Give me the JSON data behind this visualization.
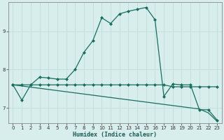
{
  "xlabel": "Humidex (Indice chaleur)",
  "xlim": [
    -0.5,
    23.5
  ],
  "ylim": [
    6.6,
    9.75
  ],
  "yticks": [
    7,
    8,
    9
  ],
  "xticks": [
    0,
    1,
    2,
    3,
    4,
    5,
    6,
    7,
    8,
    9,
    10,
    11,
    12,
    13,
    14,
    15,
    16,
    17,
    18,
    19,
    20,
    21,
    22,
    23
  ],
  "bg_color": "#d8eeec",
  "grid_color": "#c2dedd",
  "line_color": "#1a6e60",
  "lines": [
    {
      "x": [
        0,
        1,
        2,
        3,
        4,
        5,
        6,
        7,
        8,
        9,
        10,
        11,
        12,
        13,
        14,
        15,
        16,
        17,
        18,
        19,
        20,
        21,
        22,
        23
      ],
      "y": [
        7.6,
        7.2,
        7.6,
        7.8,
        7.78,
        7.75,
        7.75,
        8.0,
        8.45,
        8.75,
        9.35,
        9.2,
        9.45,
        9.52,
        9.57,
        9.62,
        9.3,
        7.3,
        7.62,
        7.6,
        7.6,
        6.95,
        6.95,
        6.68
      ],
      "marker": true,
      "linewidth": 0.9
    },
    {
      "x": [
        0,
        1,
        2,
        3,
        4,
        5,
        6,
        7,
        8,
        9,
        10,
        11,
        12,
        13,
        14,
        15,
        16,
        17,
        18,
        19,
        20,
        21,
        22,
        23
      ],
      "y": [
        7.6,
        7.6,
        7.6,
        7.6,
        7.6,
        7.6,
        7.6,
        7.6,
        7.6,
        7.6,
        7.6,
        7.6,
        7.6,
        7.6,
        7.6,
        7.6,
        7.6,
        7.6,
        7.55,
        7.55,
        7.55,
        7.55,
        7.55,
        7.55
      ],
      "marker": true,
      "linewidth": 0.9
    },
    {
      "x": [
        0,
        1,
        2,
        3,
        4,
        5,
        6,
        7,
        8,
        9,
        10,
        11,
        12,
        13,
        14,
        15,
        16,
        17,
        18,
        19,
        20,
        21,
        22,
        23
      ],
      "y": [
        7.6,
        7.57,
        7.54,
        7.51,
        7.48,
        7.45,
        7.42,
        7.39,
        7.36,
        7.33,
        7.3,
        7.27,
        7.24,
        7.21,
        7.18,
        7.15,
        7.12,
        7.09,
        7.06,
        7.03,
        7.0,
        6.97,
        6.87,
        6.65
      ],
      "marker": false,
      "linewidth": 0.9
    }
  ]
}
